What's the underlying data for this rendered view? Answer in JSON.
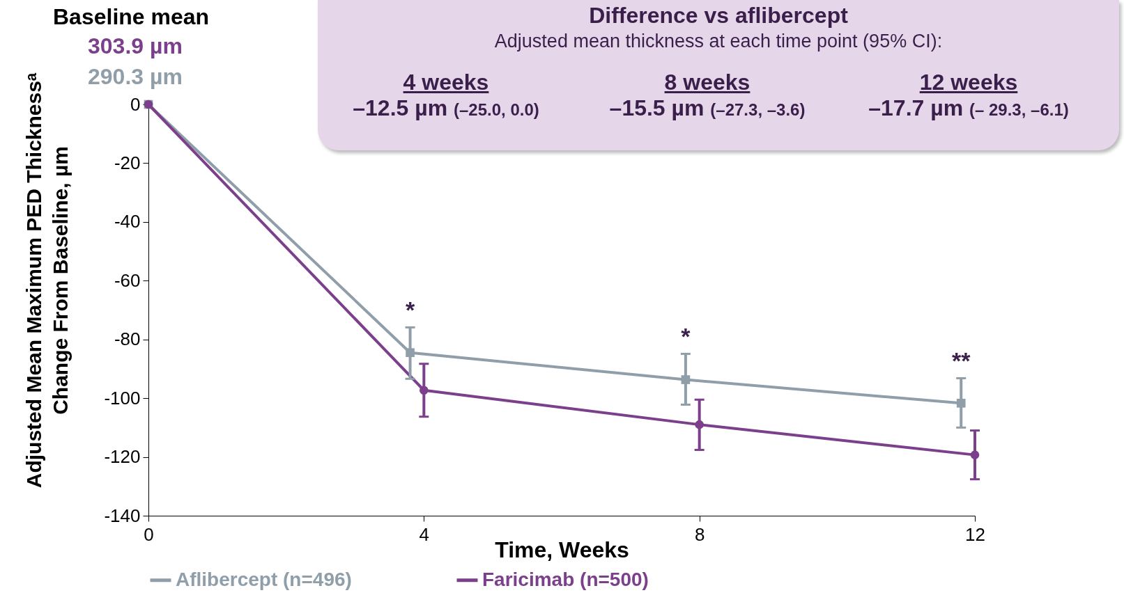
{
  "chart_data": {
    "type": "line",
    "xlabel": "Time, Weeks",
    "ylabel": "Adjusted Mean Maximum PED Thicknessᵃ Change From Baseline, µm",
    "xlim": [
      0,
      12
    ],
    "xticks": [
      0,
      4,
      8,
      12
    ],
    "ylim": [
      -140,
      0
    ],
    "yticks": [
      0,
      -20,
      -40,
      -60,
      -80,
      -100,
      -120,
      -140
    ],
    "grid": false,
    "legend": "bottom",
    "series": [
      {
        "name": "Aflibercept (n=496)",
        "color": "#8f9ea8",
        "marker": "square",
        "x": [
          0,
          3.8,
          7.8,
          11.8
        ],
        "values": [
          0,
          -84.5,
          -93.7,
          -101.7
        ],
        "errors": [
          null,
          [
            -93.4,
            -75.9
          ],
          [
            -102.2,
            -84.9
          ],
          [
            -110,
            -93.2
          ]
        ]
      },
      {
        "name": "Faricimab (n=500)",
        "color": "#7b3f8c",
        "marker": "circle",
        "x": [
          0,
          4,
          8,
          12
        ],
        "values": [
          0,
          -97.3,
          -109,
          -119.3
        ],
        "errors": [
          null,
          [
            -106.3,
            -88.3
          ],
          [
            -117.6,
            -100.5
          ],
          [
            -127.6,
            -111
          ]
        ]
      }
    ],
    "annotations": [
      "Baseline mean",
      "303.9 µm",
      "290.3 µm",
      "Difference vs aflibercept",
      "Adjusted mean thickness at each time point (95% CI):",
      "4 weeks",
      "–12.5 µm (–25.0, 0.0)",
      "8 weeks",
      "–15.5 µm (–27.3, –3.6)",
      "12 weeks",
      "–17.7 µm (– 29.3, –6.1)",
      "*",
      "*",
      "**"
    ]
  }
}
